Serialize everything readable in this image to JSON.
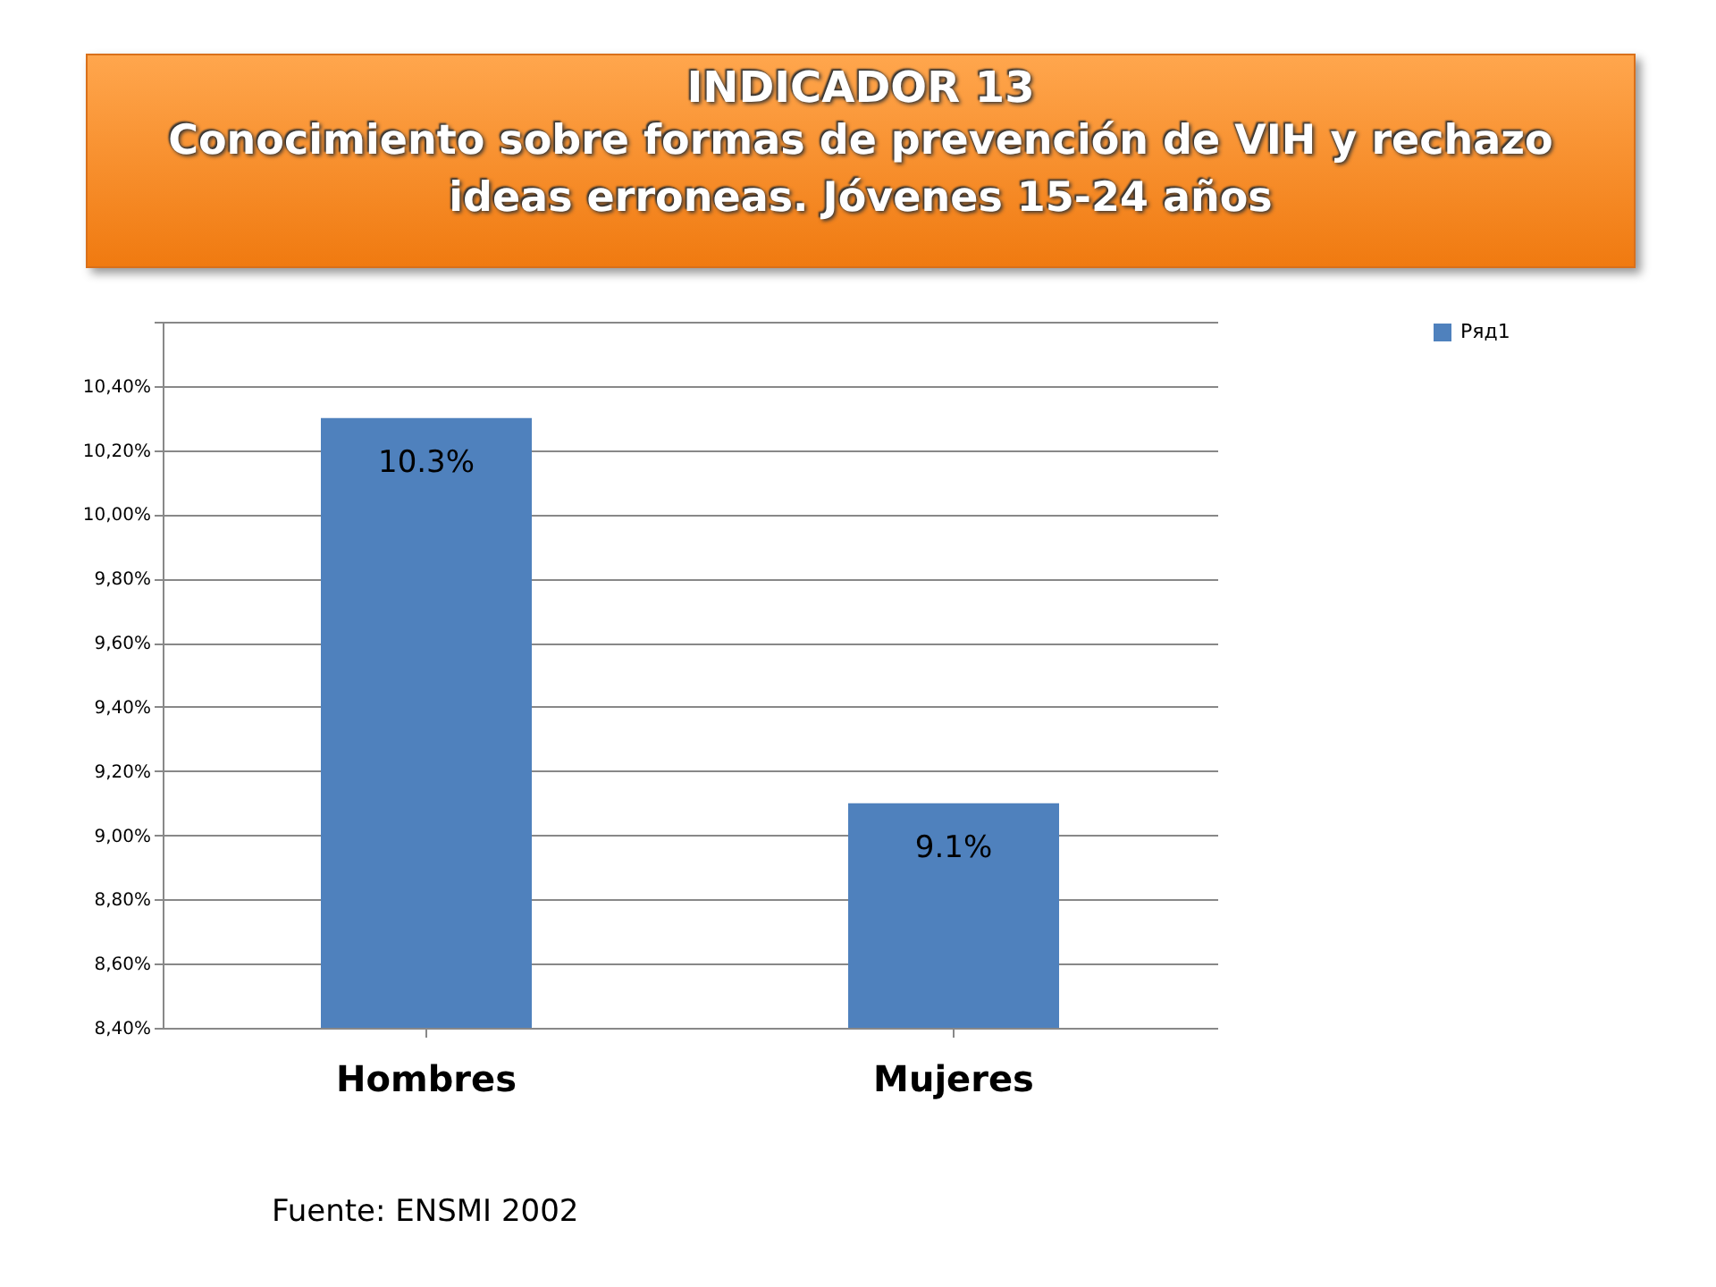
{
  "chart_data": {
    "type": "bar",
    "title": "INDICADOR 13",
    "subtitle": "Conocimiento sobre formas de prevención de VIH y rechazo ideas erroneas. Jóvenes 15-24 años",
    "categories": [
      "Hombres",
      "Mujeres"
    ],
    "series": [
      {
        "name": "Ряд1",
        "color": "#4f81bd",
        "values": [
          10.3,
          9.1
        ],
        "value_labels": [
          "10.3%",
          "9.1%"
        ]
      }
    ],
    "ylim": [
      8.4,
      10.6
    ],
    "yticks": [
      {
        "value": 8.4,
        "label": "8,40%"
      },
      {
        "value": 8.6,
        "label": "8,60%"
      },
      {
        "value": 8.8,
        "label": "8,80%"
      },
      {
        "value": 9.0,
        "label": "9,00%"
      },
      {
        "value": 9.2,
        "label": "9,20%"
      },
      {
        "value": 9.4,
        "label": "9,40%"
      },
      {
        "value": 9.6,
        "label": "9,60%"
      },
      {
        "value": 9.8,
        "label": "9,80%"
      },
      {
        "value": 10.0,
        "label": "10,00%"
      },
      {
        "value": 10.2,
        "label": "10,20%"
      },
      {
        "value": 10.4,
        "label": "10,40%"
      },
      {
        "value": 10.6,
        "label": null
      }
    ],
    "grid": true,
    "legend": "right",
    "annotations": [
      "Fuente: ENSMI 2002"
    ]
  }
}
